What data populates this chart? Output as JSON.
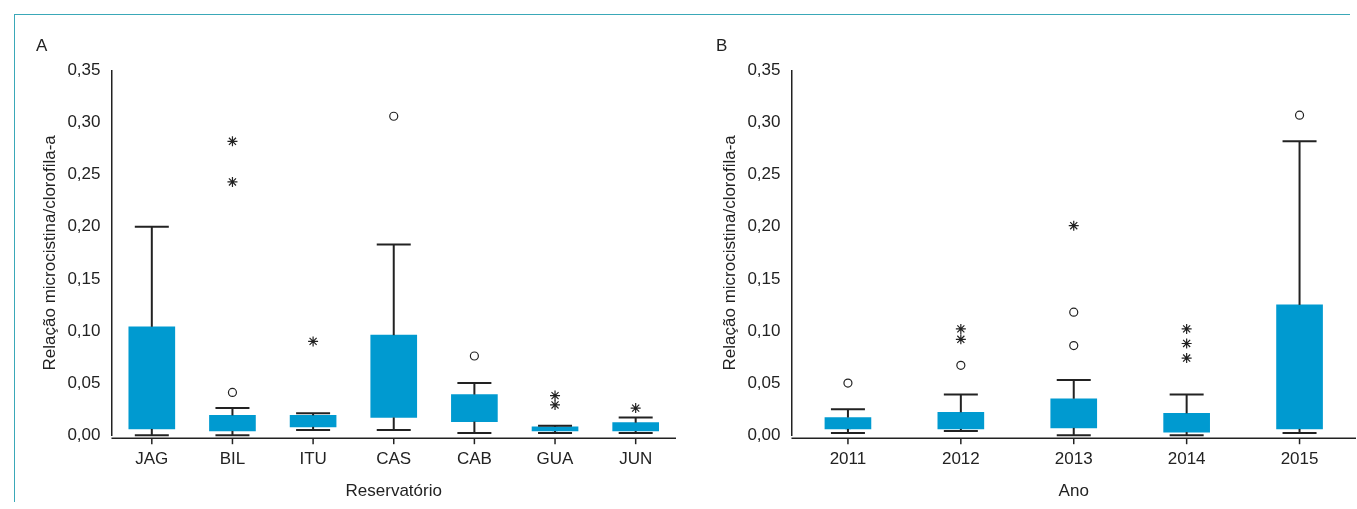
{
  "chart_data": [
    {
      "type": "box",
      "title": "A",
      "xlabel": "Reservatório",
      "ylabel": "Relação microcistina/clorofila-a",
      "categories": [
        "JAG",
        "BIL",
        "ITU",
        "CAS",
        "CAB",
        "GUA",
        "JUN"
      ],
      "color": "#009ad0",
      "boxes": [
        {
          "low": 0,
          "q1": 0.006,
          "median": 0.02,
          "q3": 0.104,
          "high": 0.2
        },
        {
          "low": 0,
          "q1": 0.004,
          "median": 0.007,
          "q3": 0.019,
          "high": 0.026,
          "outliers": [
            0.041
          ]
        },
        {
          "low": 0.005,
          "q1": 0.008,
          "median": 0.012,
          "q3": 0.019,
          "high": 0.021
        },
        {
          "low": 0.005,
          "q1": 0.017,
          "median": 0.047,
          "q3": 0.096,
          "high": 0.183,
          "outliers": [
            0.306
          ]
        },
        {
          "low": 0.002,
          "q1": 0.013,
          "median": 0.02,
          "q3": 0.039,
          "high": 0.05,
          "outliers": [
            0.076
          ]
        },
        {
          "low": 0.002,
          "q1": 0.004,
          "median": 0.006,
          "q3": 0.008,
          "high": 0.009
        },
        {
          "low": 0.002,
          "q1": 0.004,
          "median": 0.007,
          "q3": 0.012,
          "high": 0.017
        }
      ],
      "series": [
        {
          "type": "scatter",
          "marker": "cross",
          "color": "#222222",
          "x": [
            "BIL",
            "BIL",
            "ITU",
            "GUA",
            "GUA",
            "JUN"
          ],
          "values": [
            0.243,
            0.282,
            0.09,
            0.029,
            0.038,
            0.026
          ]
        }
      ],
      "ylim": [
        0,
        0.35
      ],
      "yticks": [
        {
          "value": 0,
          "label": "0,00"
        },
        {
          "value": 0.05,
          "label": "0,05"
        },
        {
          "value": 0.1,
          "label": "0,10"
        },
        {
          "value": 0.15,
          "label": "0,15"
        },
        {
          "value": 0.2,
          "label": "0,20"
        },
        {
          "value": 0.25,
          "label": "0,25"
        },
        {
          "value": 0.3,
          "label": "0,30"
        },
        {
          "value": 0.35,
          "label": "0,35"
        }
      ],
      "grid": false,
      "legend": false
    },
    {
      "type": "box",
      "title": "B",
      "xlabel": "Ano",
      "ylabel": "Relação microcistina/clorofila-a",
      "categories": [
        "2011",
        "2012",
        "2013",
        "2014",
        "2015"
      ],
      "color": "#009ad0",
      "boxes": [
        {
          "low": 0.002,
          "q1": 0.006,
          "median": 0.008,
          "q3": 0.017,
          "high": 0.025,
          "outliers": [
            0.05
          ]
        },
        {
          "low": 0.004,
          "q1": 0.006,
          "median": 0.009,
          "q3": 0.022,
          "high": 0.039,
          "outliers": [
            0.067
          ]
        },
        {
          "low": 0,
          "q1": 0.007,
          "median": 0.013,
          "q3": 0.035,
          "high": 0.053,
          "outliers": [
            0.086,
            0.118
          ]
        },
        {
          "low": 0,
          "q1": 0.003,
          "median": 0.009,
          "q3": 0.021,
          "high": 0.039
        },
        {
          "low": 0.002,
          "q1": 0.006,
          "median": 0.021,
          "q3": 0.125,
          "high": 0.282,
          "outliers": [
            0.307
          ]
        }
      ],
      "series": [
        {
          "type": "scatter",
          "marker": "cross",
          "color": "#222222",
          "values": [
            null,
            0.092,
            0.201,
            0.074,
            null
          ]
        },
        {
          "type": "scatter",
          "marker": "cross",
          "color": "#222222",
          "values": [
            null,
            0.102,
            null,
            0.088,
            null
          ]
        },
        {
          "type": "scatter",
          "marker": "cross",
          "color": "#222222",
          "values": [
            null,
            null,
            null,
            0.102,
            null
          ]
        }
      ],
      "ylim": [
        0,
        0.35
      ],
      "yticks": [
        {
          "value": 0,
          "label": "0,00"
        },
        {
          "value": 0.05,
          "label": "0,05"
        },
        {
          "value": 0.1,
          "label": "0,10"
        },
        {
          "value": 0.15,
          "label": "0,15"
        },
        {
          "value": 0.2,
          "label": "0,20"
        },
        {
          "value": 0.25,
          "label": "0,25"
        },
        {
          "value": 0.3,
          "label": "0,30"
        },
        {
          "value": 0.35,
          "label": "0,35"
        }
      ],
      "grid": false,
      "legend": false
    }
  ]
}
